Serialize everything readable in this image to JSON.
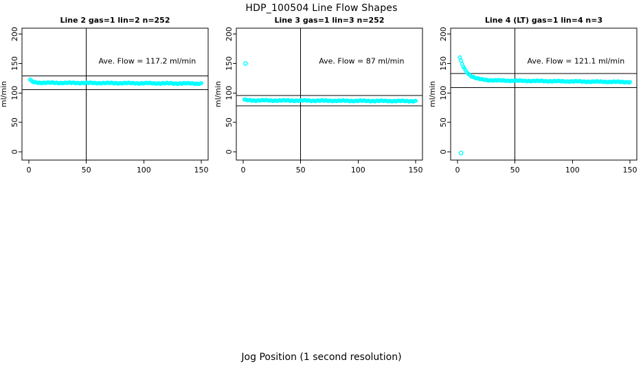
{
  "figure": {
    "title": "HDP_100504  Line Flow Shapes",
    "xlabel": "Jog Position (1 second resolution)",
    "background": "#ffffff",
    "text_color": "#000000"
  },
  "chart_data": [
    {
      "type": "scatter",
      "title": "Line 2 gas=1 lin=2 n=252",
      "n_points": 252,
      "ave_flow": 117.2,
      "annotation": "Ave. Flow =  117.2  ml/min",
      "ylabel": "ml/min",
      "xlim": [
        -6,
        156
      ],
      "ylim": [
        -14,
        210
      ],
      "x_ticks": [
        0,
        50,
        100,
        150
      ],
      "y_ticks": [
        0,
        50,
        100,
        150,
        200
      ],
      "vline_x": 50,
      "hlines": [
        128.9,
        105.5
      ],
      "grid": false,
      "point_color": "#00ffff",
      "series": {
        "x_start": 1,
        "x_end": 150,
        "step": 1,
        "start_y": 122.5,
        "plateau_y": 117.4,
        "end_y": 116.0,
        "decay": 2.0,
        "jitter": 1.0
      },
      "outliers": []
    },
    {
      "type": "scatter",
      "title": "Line 3 gas=1 lin=3 n=252",
      "n_points": 252,
      "ave_flow": 87,
      "annotation": "Ave. Flow =  87  ml/min",
      "ylabel": "ml/min",
      "xlim": [
        -6,
        156
      ],
      "ylim": [
        -14,
        210
      ],
      "x_ticks": [
        0,
        50,
        100,
        150
      ],
      "y_ticks": [
        0,
        50,
        100,
        150,
        200
      ],
      "vline_x": 50,
      "hlines": [
        95.7,
        78.3
      ],
      "grid": false,
      "point_color": "#00ffff",
      "series": {
        "x_start": 1,
        "x_end": 150,
        "step": 1,
        "start_y": 88.5,
        "plateau_y": 87.4,
        "end_y": 86.2,
        "decay": 2.0,
        "jitter": 1.0
      },
      "outliers": [
        [
          2,
          150
        ]
      ]
    },
    {
      "type": "scatter",
      "title": "Line 4 (LT) gas=1 lin=4 n=3",
      "n_points": 3,
      "ave_flow": 121.1,
      "annotation": "Ave. Flow =  121.1  ml/min",
      "ylabel": "ml/min",
      "xlim": [
        -6,
        156
      ],
      "ylim": [
        -14,
        210
      ],
      "x_ticks": [
        0,
        50,
        100,
        150
      ],
      "y_ticks": [
        0,
        50,
        100,
        150,
        200
      ],
      "vline_x": 50,
      "hlines": [
        133.2,
        109.0
      ],
      "grid": false,
      "point_color": "#00ffff",
      "series": {
        "x_start": 2,
        "x_end": 150,
        "step": 1,
        "start_y": 160.0,
        "plateau_y": 121.8,
        "end_y": 118.5,
        "decay": 6.0,
        "jitter": 1.0
      },
      "outliers": [
        [
          3,
          -2
        ]
      ]
    }
  ]
}
